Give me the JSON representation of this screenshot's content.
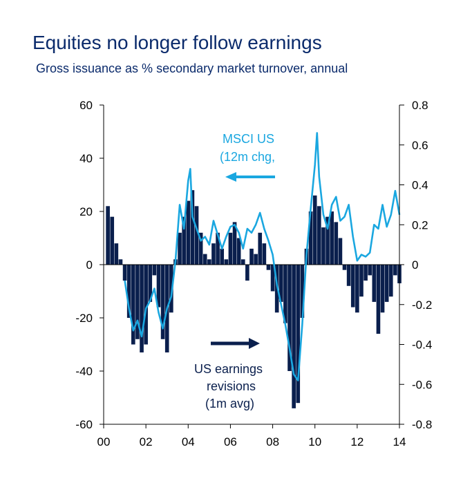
{
  "chart_data": {
    "type": "bar+line",
    "title": "Equities no longer follow earnings",
    "subtitle": "Gross issuance as % secondary market turnover, annual",
    "x_tick_labels": [
      "00",
      "02",
      "04",
      "06",
      "08",
      "10",
      "12",
      "14"
    ],
    "x_range": [
      2000,
      2014
    ],
    "left_axis": {
      "ticks": [
        "60",
        "40",
        "20",
        "0",
        "-20",
        "-40",
        "-60"
      ],
      "ylim": [
        -60,
        60
      ]
    },
    "right_axis": {
      "ticks": [
        "0.8",
        "0.6",
        "0.4",
        "0.2",
        "0",
        "-0.2",
        "-0.4",
        "-0.6",
        "-0.8"
      ],
      "ylim": [
        -0.8,
        0.8
      ]
    },
    "annotations": {
      "msci_line1": "MSCI US",
      "msci_line2": "(12m chg,",
      "earn_line1": "US earnings",
      "earn_line2": "revisions",
      "earn_line3": "(1m avg)"
    },
    "colors": {
      "bars": "#0a1f4d",
      "line": "#1aa7e0",
      "title": "#0a2a6b"
    },
    "series": [
      {
        "name": "US earnings revisions (1m avg)",
        "axis": "left",
        "type": "bar",
        "x": [
          2000.2,
          2000.4,
          2000.6,
          2000.8,
          2001.0,
          2001.2,
          2001.4,
          2001.6,
          2001.8,
          2002.0,
          2002.2,
          2002.4,
          2002.6,
          2002.8,
          2003.0,
          2003.2,
          2003.4,
          2003.6,
          2003.8,
          2004.0,
          2004.2,
          2004.4,
          2004.6,
          2004.8,
          2005.0,
          2005.2,
          2005.4,
          2005.6,
          2005.8,
          2006.0,
          2006.2,
          2006.4,
          2006.6,
          2006.8,
          2007.0,
          2007.2,
          2007.4,
          2007.6,
          2007.8,
          2008.0,
          2008.2,
          2008.4,
          2008.6,
          2008.8,
          2009.0,
          2009.2,
          2009.4,
          2009.6,
          2009.8,
          2010.0,
          2010.2,
          2010.4,
          2010.6,
          2010.8,
          2011.0,
          2011.2,
          2011.4,
          2011.6,
          2011.8,
          2012.0,
          2012.2,
          2012.4,
          2012.6,
          2012.8,
          2013.0,
          2013.2,
          2013.4,
          2013.6,
          2013.8,
          2014.0
        ],
        "values": [
          22,
          18,
          8,
          2,
          -6,
          -20,
          -30,
          -28,
          -33,
          -30,
          -14,
          -4,
          -16,
          -28,
          -33,
          -18,
          2,
          12,
          18,
          24,
          28,
          22,
          12,
          4,
          2,
          8,
          12,
          6,
          2,
          12,
          16,
          10,
          2,
          -6,
          6,
          4,
          12,
          8,
          -2,
          -10,
          -18,
          -14,
          -22,
          -40,
          -54,
          -52,
          -20,
          6,
          20,
          26,
          22,
          14,
          18,
          20,
          16,
          10,
          -2,
          -8,
          -16,
          -18,
          -12,
          -6,
          -4,
          -14,
          -26,
          -18,
          -14,
          -12,
          -4,
          -7
        ]
      },
      {
        "name": "MSCI US (12m chg)",
        "axis": "right",
        "type": "line",
        "x": [
          2001.0,
          2001.2,
          2001.4,
          2001.6,
          2001.8,
          2002.0,
          2002.2,
          2002.4,
          2002.6,
          2002.8,
          2003.0,
          2003.2,
          2003.4,
          2003.6,
          2003.8,
          2004.0,
          2004.1,
          2004.2,
          2004.4,
          2004.6,
          2004.8,
          2005.0,
          2005.2,
          2005.4,
          2005.6,
          2005.8,
          2006.0,
          2006.2,
          2006.4,
          2006.6,
          2006.8,
          2007.0,
          2007.2,
          2007.4,
          2007.6,
          2007.8,
          2008.0,
          2008.2,
          2008.4,
          2008.6,
          2008.8,
          2009.0,
          2009.2,
          2009.4,
          2009.6,
          2009.8,
          2010.0,
          2010.1,
          2010.2,
          2010.4,
          2010.6,
          2010.8,
          2011.0,
          2011.2,
          2011.4,
          2011.6,
          2011.8,
          2012.0,
          2012.2,
          2012.4,
          2012.6,
          2012.8,
          2013.0,
          2013.2,
          2013.4,
          2013.6,
          2013.8,
          2014.0
        ],
        "values": [
          -0.08,
          -0.22,
          -0.33,
          -0.28,
          -0.36,
          -0.22,
          -0.18,
          -0.12,
          -0.24,
          -0.32,
          -0.22,
          -0.16,
          0.02,
          0.3,
          0.18,
          0.42,
          0.48,
          0.24,
          0.18,
          0.12,
          0.14,
          0.1,
          0.22,
          0.15,
          0.08,
          0.14,
          0.19,
          0.2,
          0.16,
          0.08,
          0.18,
          0.16,
          0.2,
          0.26,
          0.18,
          0.12,
          0.05,
          -0.1,
          -0.2,
          -0.3,
          -0.42,
          -0.55,
          -0.58,
          -0.3,
          0.05,
          0.28,
          0.5,
          0.66,
          0.44,
          0.25,
          0.18,
          0.3,
          0.34,
          0.22,
          0.24,
          0.3,
          0.14,
          0.02,
          0.05,
          0.04,
          0.06,
          0.2,
          0.18,
          0.3,
          0.19,
          0.25,
          0.37,
          0.25
        ]
      }
    ]
  }
}
